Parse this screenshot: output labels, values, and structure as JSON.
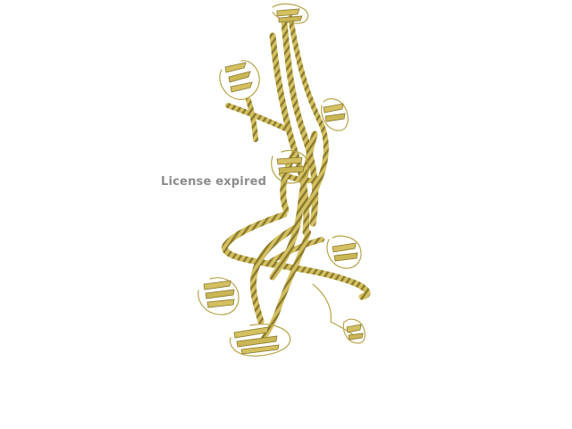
{
  "viewer": {
    "watermark_text": "License expired"
  },
  "structure": {
    "representation": "cartoon",
    "color": "#d4c060",
    "shadow_color": "#8a7a30",
    "highlight_color": "#f2e59a",
    "background": "#ffffff"
  }
}
